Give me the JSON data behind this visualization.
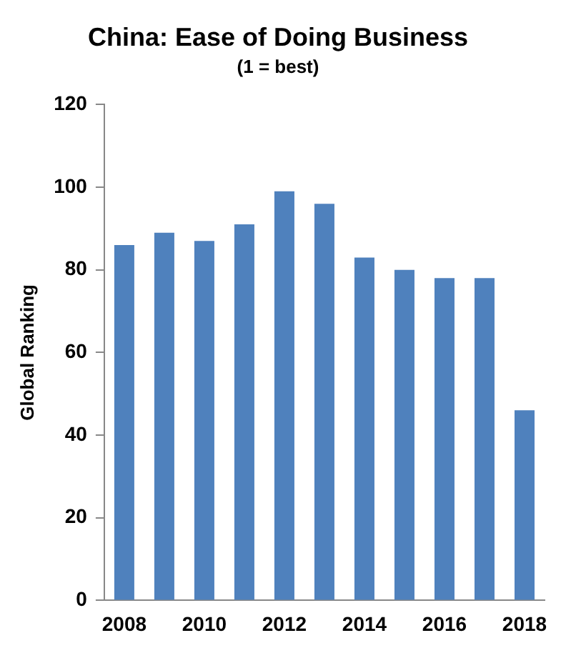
{
  "chart_data": {
    "type": "bar",
    "title": "China: Ease of Doing Business",
    "subtitle": "(1 = best)",
    "ylabel": "Global Ranking",
    "categories": [
      "2008",
      null,
      "2010",
      null,
      "2012",
      null,
      "2014",
      null,
      "2016",
      null,
      "2018"
    ],
    "values": [
      86,
      89,
      87,
      91,
      99,
      96,
      83,
      80,
      78,
      78,
      46
    ],
    "color": "#4f81bd",
    "ylim": [
      0,
      120
    ],
    "yticks": [
      0,
      20,
      40,
      60,
      80,
      100,
      120
    ],
    "grid": false,
    "legend": false
  }
}
